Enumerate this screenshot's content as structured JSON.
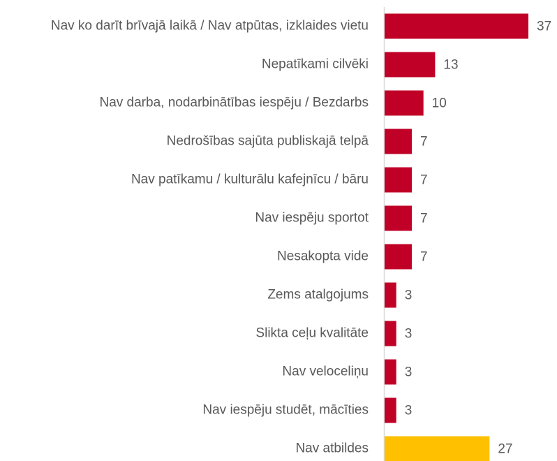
{
  "chart_data": {
    "type": "bar",
    "orientation": "horizontal",
    "categories": [
      "Nav ko darīt brīvajā laikā / Nav atpūtas, izklaides vietu",
      "Nepatīkami cilvēki",
      "Nav darba, nodarbinātības iespēju / Bezdarbs",
      "Nedrošības sajūta publiskajā telpā",
      "Nav patīkamu / kulturālu kafejnīcu / bāru",
      "Nav iespēju sportot",
      "Nesakopta vide",
      "Zems atalgojums",
      "Slikta ceļu kvalitāte",
      "Nav veloceliņu",
      "Nav iespēju studēt, mācīties",
      "Nav atbildes"
    ],
    "values": [
      37,
      13,
      10,
      7,
      7,
      7,
      7,
      3,
      3,
      3,
      3,
      27
    ],
    "colors": [
      "#c00027",
      "#c00027",
      "#c00027",
      "#c00027",
      "#c00027",
      "#c00027",
      "#c00027",
      "#c00027",
      "#c00027",
      "#c00027",
      "#c00027",
      "#ffc000"
    ]
  }
}
